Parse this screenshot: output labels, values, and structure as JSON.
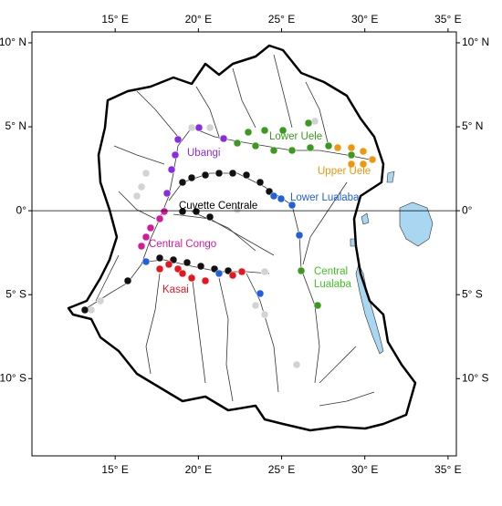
{
  "map_data": {
    "lonlim": [
      10,
      35.5
    ],
    "latlim": [
      10.65,
      -14.6
    ],
    "lon_ticks": [
      {
        "value": 15,
        "label": "15° E"
      },
      {
        "value": 20,
        "label": "20° E"
      },
      {
        "value": 25,
        "label": "25° E"
      },
      {
        "value": 30,
        "label": "30° E"
      },
      {
        "value": 35,
        "label": "35° E"
      }
    ],
    "lat_ticks": [
      {
        "value": 10,
        "label": "10° N"
      },
      {
        "value": 5,
        "label": "5° N"
      },
      {
        "value": 0,
        "label": "0°"
      },
      {
        "value": -5,
        "label": "5° S"
      },
      {
        "value": -10,
        "label": "10° S"
      }
    ],
    "regions": [
      "Ubangi",
      "Lower Uele",
      "Upper Uele",
      "Cuvette Centrale",
      "Lower Lualaba",
      "Central Congo",
      [
        "Central",
        "Lualaba"
      ],
      "Kasai"
    ]
  }
}
